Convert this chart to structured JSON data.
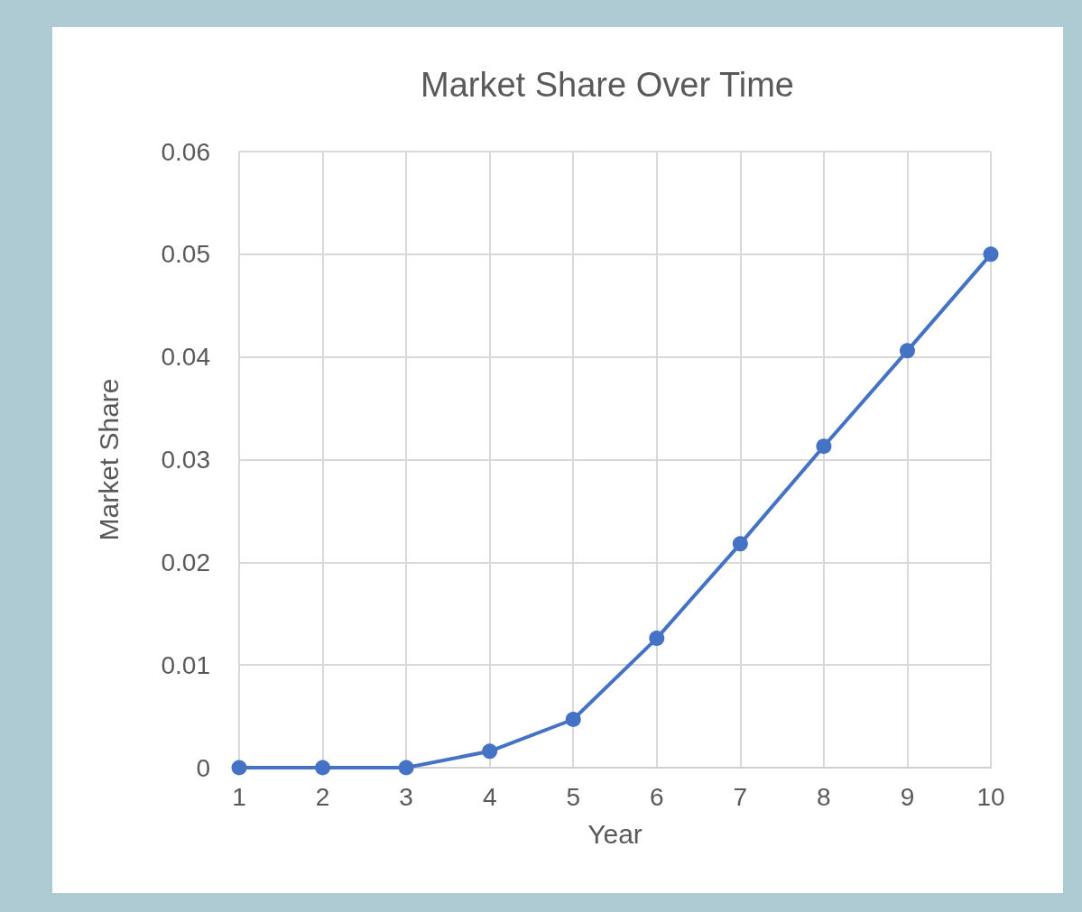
{
  "chart_data": {
    "type": "line",
    "title": "Market Share Over Time",
    "xlabel": "Year",
    "ylabel": "Market Share",
    "categories": [
      "1",
      "2",
      "3",
      "4",
      "5",
      "6",
      "7",
      "8",
      "9",
      "10"
    ],
    "series": [
      {
        "color": "#4472c4",
        "values": [
          0,
          0,
          0,
          0.0016,
          0.0047,
          0.0126,
          0.0218,
          0.0313,
          0.0406,
          0.05
        ]
      }
    ],
    "ylim": [
      0,
      0.06
    ],
    "yticks": [
      0,
      0.01,
      0.02,
      0.03,
      0.04,
      0.05,
      0.06
    ],
    "grid": true,
    "marker": "circle",
    "line_style": "solid"
  }
}
